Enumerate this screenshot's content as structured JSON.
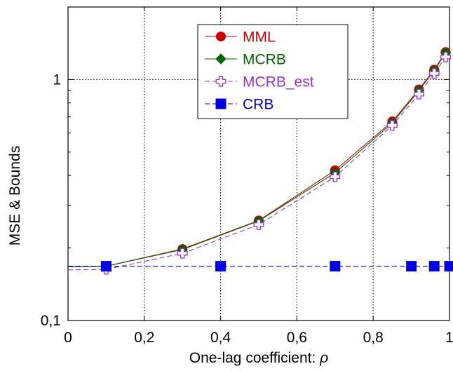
{
  "chart_data": {
    "type": "line",
    "xlabel": "One-lag coefficient: ",
    "xlabel_symbol": "ρ",
    "ylabel": "MSE & Bounds",
    "xlim": [
      0,
      1
    ],
    "ylim": [
      0.1,
      2
    ],
    "yscale": "log",
    "grid": true,
    "legend_position": "top-center",
    "x_ticks": [
      "0",
      "0,2",
      "0,4",
      "0,6",
      "0,8",
      "1"
    ],
    "y_ticks": [
      "0,1",
      "1"
    ],
    "series": [
      {
        "name": "MML",
        "color": "#cc0000",
        "line": "solid",
        "marker": "circle",
        "x": [
          0.1,
          0.3,
          0.5,
          0.7,
          0.85,
          0.92,
          0.96,
          0.99
        ],
        "y": [
          0.168,
          0.198,
          0.26,
          0.42,
          0.67,
          0.91,
          1.1,
          1.3
        ]
      },
      {
        "name": "MCRB",
        "color": "#006600",
        "line": "solid",
        "marker": "diamond",
        "x": [
          0.1,
          0.3,
          0.5,
          0.7,
          0.85,
          0.92,
          0.96,
          0.99
        ],
        "y": [
          0.168,
          0.197,
          0.259,
          0.41,
          0.66,
          0.9,
          1.09,
          1.29
        ]
      },
      {
        "name": "MCRB_est",
        "color": "#9933cc",
        "line": "dashed",
        "marker": "plus-open",
        "x": [
          0.1,
          0.3,
          0.5,
          0.7,
          0.85,
          0.92,
          0.96,
          0.99
        ],
        "y": [
          0.163,
          0.19,
          0.25,
          0.395,
          0.645,
          0.87,
          1.06,
          1.24
        ]
      },
      {
        "name": "CRB",
        "color": "#0000dd",
        "line": "dashed",
        "marker": "square",
        "x": [
          0.1,
          0.4,
          0.7,
          0.9,
          0.96,
          1.0
        ],
        "y": [
          0.168,
          0.168,
          0.168,
          0.168,
          0.168,
          0.168
        ]
      }
    ]
  }
}
